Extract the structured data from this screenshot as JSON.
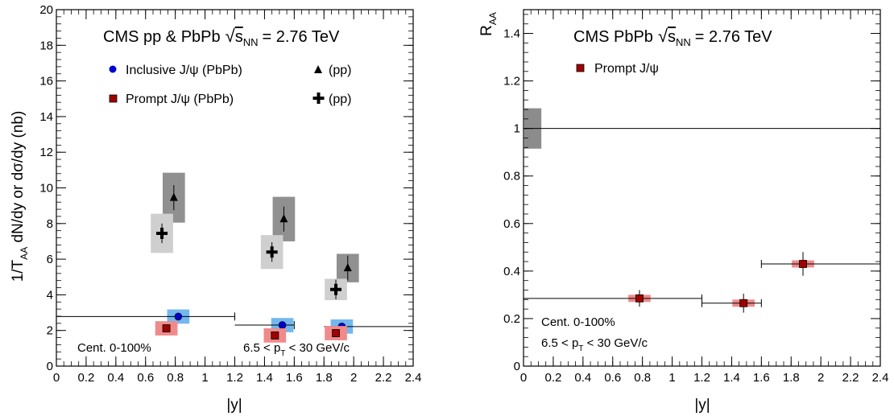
{
  "chart_data": [
    {
      "type": "scatter",
      "title": "CMS pp & PbPb √s_NN = 2.76 TeV",
      "title_parts": {
        "lead": "CMS pp & PbPb",
        "sqrt": "s",
        "sub": "NN",
        "tail": "= 2.76 TeV"
      },
      "ylabel": "1/T_AA dN/dy  or  dσ/dy (nb)",
      "ylabel_parts": {
        "a": "1/T",
        "a_sub": "AA",
        "b": " dN/dy  or  dσ/dy (nb)"
      },
      "xlabel": "|y|",
      "xlim": [
        0,
        2.4
      ],
      "ylim": [
        0,
        20
      ],
      "xticks": [
        "0",
        "0.2",
        "0.4",
        "0.6",
        "0.8",
        "1",
        "1.2",
        "1.4",
        "1.6",
        "1.8",
        "2",
        "2.2",
        "2.4"
      ],
      "yticks": [
        "0",
        "2",
        "4",
        "6",
        "8",
        "10",
        "12",
        "14",
        "16",
        "18",
        "20"
      ],
      "series": [
        {
          "name": "Inclusive J/ψ (PbPb)",
          "marker": "circle",
          "color": "#0000cc",
          "box_color": "#72b8ee",
          "x": [
            0.82,
            1.52,
            1.92
          ],
          "y": [
            2.78,
            2.3,
            2.22
          ],
          "xerr": [
            0.6,
            0.6,
            0.6
          ]
        },
        {
          "name": "Prompt J/ψ (PbPb)",
          "marker": "square",
          "color": "#a00000",
          "box_color": "#f08a8a",
          "x": [
            0.74,
            1.47,
            1.88
          ],
          "y": [
            2.12,
            1.72,
            1.85
          ]
        },
        {
          "name": "(pp)",
          "marker": "triangle",
          "color": "#000000",
          "box_color": "#909090",
          "x": [
            0.79,
            1.53,
            1.96
          ],
          "y": [
            9.45,
            8.25,
            5.5
          ]
        },
        {
          "name": "(pp)",
          "marker": "cross",
          "color": "#000000",
          "box_color": "#cfcfcf",
          "x": [
            0.71,
            1.45,
            1.88
          ],
          "y": [
            7.45,
            6.4,
            4.3
          ]
        }
      ],
      "annotations": {
        "cent": "Cent. 0-100%",
        "pt": {
          "a": "6.5 < p",
          "sub": "T",
          "b": " < 30 GeV/c"
        }
      },
      "legend": [
        "Inclusive J/ψ (PbPb)",
        "(pp)",
        "Prompt J/ψ (PbPb)",
        "(pp)"
      ]
    },
    {
      "type": "scatter",
      "title": "CMS PbPb √s_NN = 2.76 TeV",
      "title_parts": {
        "lead": "CMS PbPb",
        "sqrt": "s",
        "sub": "NN",
        "tail": "= 2.76 TeV"
      },
      "ylabel": "R_AA",
      "ylabel_parts": {
        "a": "R",
        "a_sub": "AA"
      },
      "xlabel": "|y|",
      "xlim": [
        0,
        2.4
      ],
      "ylim": [
        0,
        1.5
      ],
      "xticks": [
        "0",
        "0.2",
        "0.4",
        "0.6",
        "0.8",
        "1",
        "1.2",
        "1.4",
        "1.6",
        "1.8",
        "2",
        "2.2",
        "2.4"
      ],
      "yticks": [
        "0",
        "0.2",
        "0.4",
        "0.6",
        "0.8",
        "1",
        "1.2",
        "1.4"
      ],
      "reference_line": 1,
      "series": [
        {
          "name": "Prompt J/ψ",
          "marker": "square",
          "color": "#a00000",
          "box_color": "#f08a8a",
          "x": [
            0.78,
            1.48,
            1.88
          ],
          "y": [
            0.285,
            0.265,
            0.43
          ],
          "xerr_lo": [
            0.78,
            0.28,
            0.28
          ],
          "xerr_hi": [
            0.42,
            0.12,
            0.52
          ],
          "yerr": [
            0.035,
            0.04,
            0.05
          ]
        }
      ],
      "annotations": {
        "cent": "Cent. 0-100%",
        "pt": {
          "a": "6.5 < p",
          "sub": "T",
          "b": " < 30 GeV/c"
        }
      },
      "legend": [
        "Prompt J/ψ"
      ]
    }
  ]
}
